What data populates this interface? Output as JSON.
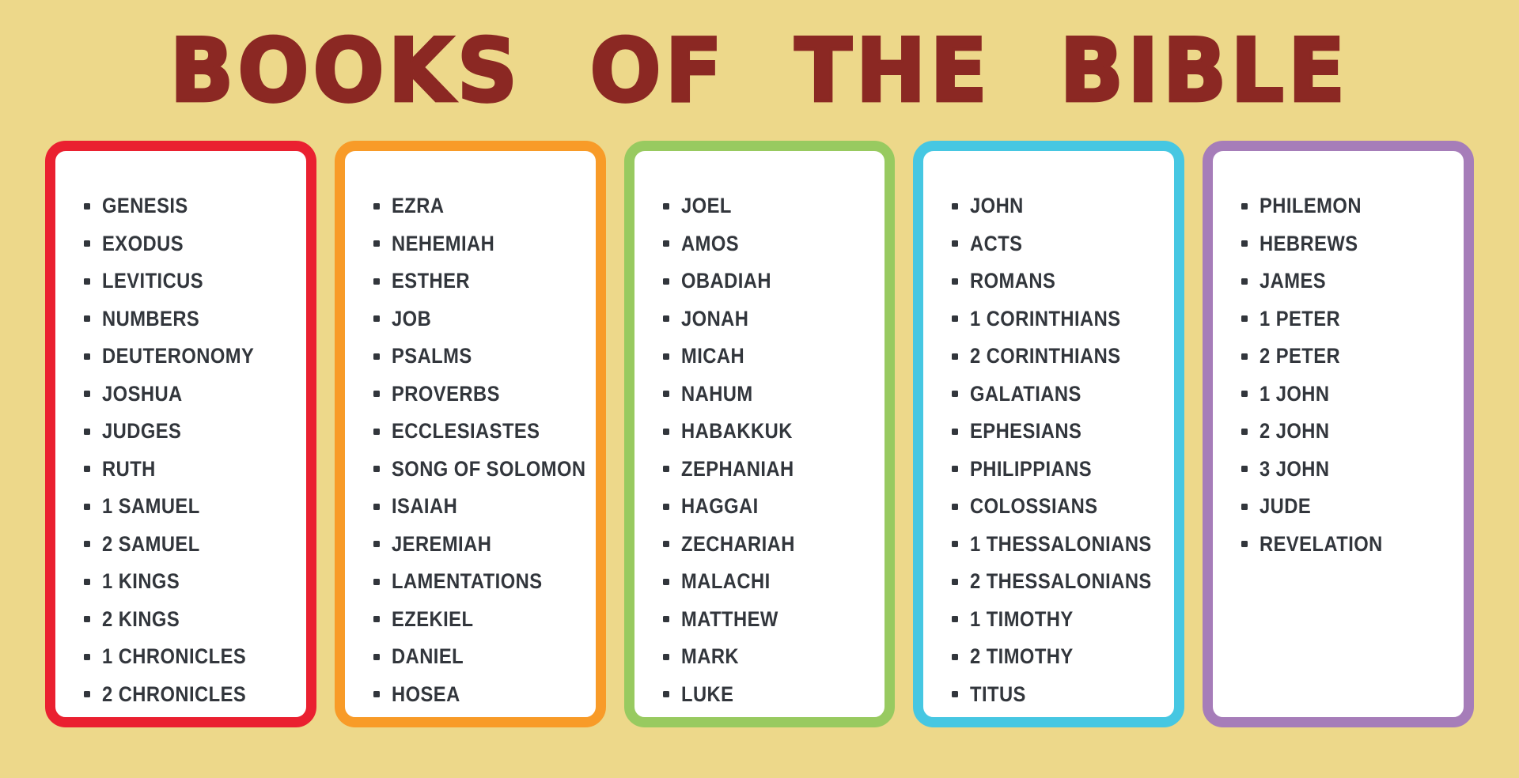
{
  "title": "BOOKS OF THE BIBLE",
  "colors": {
    "background": "#EDD88A",
    "title_text": "#8B2823",
    "list_text": "#32363C",
    "card_background": "#FFFFFF"
  },
  "bullet_icon": "square-bullet",
  "columns": [
    {
      "border_color": "#EA2030",
      "items": [
        "GENESIS",
        "EXODUS",
        "LEVITICUS",
        "NUMBERS",
        "DEUTERONOMY",
        "JOSHUA",
        "JUDGES",
        "RUTH",
        "1 SAMUEL",
        "2 SAMUEL",
        "1 KINGS",
        "2 KINGS",
        "1 CHRONICLES",
        "2 CHRONICLES"
      ]
    },
    {
      "border_color": "#F89B28",
      "items": [
        "EZRA",
        "NEHEMIAH",
        "ESTHER",
        "JOB",
        "PSALMS",
        "PROVERBS",
        "ECCLESIASTES",
        "SONG OF SOLOMON",
        "ISAIAH",
        "JEREMIAH",
        "LAMENTATIONS",
        "EZEKIEL",
        "DANIEL",
        "HOSEA"
      ]
    },
    {
      "border_color": "#98CA60",
      "items": [
        "JOEL",
        "AMOS",
        "OBADIAH",
        "JONAH",
        "MICAH",
        "NAHUM",
        "HABAKKUK",
        "ZEPHANIAH",
        "HAGGAI",
        "ZECHARIAH",
        "MALACHI",
        "MATTHEW",
        "MARK",
        "LUKE"
      ]
    },
    {
      "border_color": "#46C7E2",
      "items": [
        "JOHN",
        "ACTS",
        "ROMANS",
        "1 CORINTHIANS",
        "2 CORINTHIANS",
        "GALATIANS",
        "EPHESIANS",
        "PHILIPPIANS",
        "COLOSSIANS",
        "1 THESSALONIANS",
        "2 THESSALONIANS",
        "1 TIMOTHY",
        "2 TIMOTHY",
        "TITUS"
      ]
    },
    {
      "border_color": "#A67DB9",
      "items": [
        "PHILEMON",
        "HEBREWS",
        "JAMES",
        "1 PETER",
        "2 PETER",
        "1 JOHN",
        "2 JOHN",
        "3 JOHN",
        "JUDE",
        "REVELATION"
      ]
    }
  ]
}
